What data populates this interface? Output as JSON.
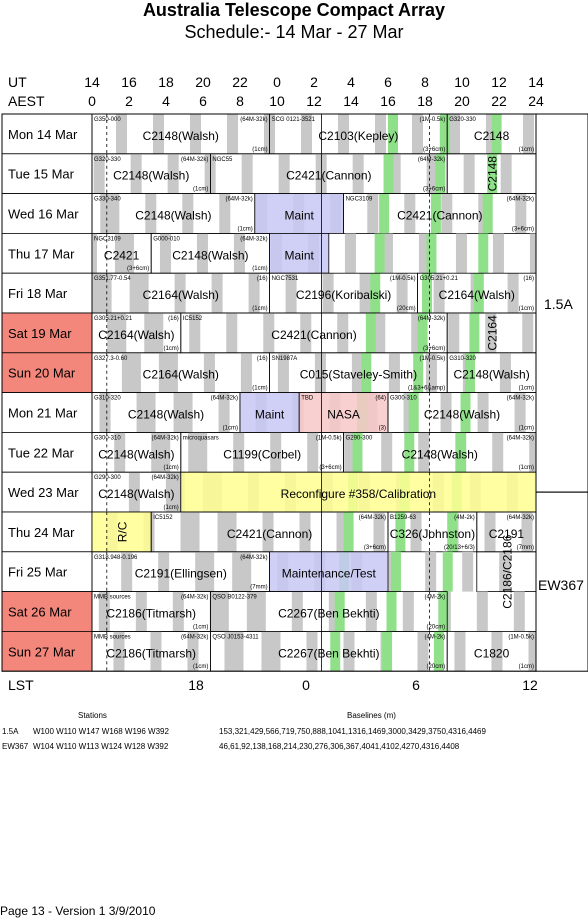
{
  "title": "Australia Telescope Compact Array",
  "subtitle": "Schedule:- 14 Mar - 27 Mar",
  "labels": {
    "ut": "UT",
    "aest": "AEST",
    "lst": "LST"
  },
  "ut_ticks": [
    "14",
    "16",
    "18",
    "20",
    "22",
    "0",
    "2",
    "4",
    "6",
    "8",
    "10",
    "12",
    "14"
  ],
  "aest_ticks": [
    "0",
    "2",
    "4",
    "6",
    "8",
    "10",
    "12",
    "14",
    "16",
    "18",
    "20",
    "22",
    "24"
  ],
  "lst_ticks": [
    "18",
    "0",
    "6",
    "12"
  ],
  "colors": {
    "weekend": "#f4877b",
    "grey": "#c8c8c8",
    "green": "#90e08a",
    "blue": "#c8c8f4",
    "yellow": "#ffff90",
    "pink": "#f8c8c8"
  },
  "days": [
    {
      "label": "Mon  14 Mar",
      "weekend": false,
      "blocks": [
        {
          "start": 0,
          "end": 12,
          "text": "C2148(Walsh)",
          "src": "G350-000",
          "cfg": "(64M-32k)",
          "note": "(1cm)"
        },
        {
          "start": 12,
          "end": 24,
          "text": "C2103(Kepley)",
          "src": "SCG 0121-3521",
          "cfg": "(1M-0.5k)",
          "note": "(3+6cm)"
        },
        {
          "start": 24,
          "end": 30,
          "text": "C2148",
          "src": "G320-330",
          "cfg": "",
          "note": "(1cm)"
        }
      ]
    },
    {
      "label": "Tue  15 Mar",
      "weekend": false,
      "blocks": [
        {
          "start": 0,
          "end": 8,
          "text": "C2148(Walsh)",
          "src": "G320-330",
          "cfg": "(64M-32k)",
          "note": "(1cm)"
        },
        {
          "start": 8,
          "end": 24,
          "text": "C2421(Cannon)",
          "src": "NGC55",
          "cfg": "(64M-32k)",
          "note": "(3+6cm)"
        },
        {
          "start": 24,
          "end": 30,
          "text": "C2148",
          "src": "",
          "cfg": "",
          "note": "",
          "vertical": true
        }
      ]
    },
    {
      "label": "Wed  16 Mar",
      "weekend": false,
      "blocks": [
        {
          "start": 0,
          "end": 11,
          "text": "C2148(Walsh)",
          "src": "G330-340",
          "cfg": "(64M-32k)",
          "note": "(1cm)"
        },
        {
          "start": 11,
          "end": 17,
          "text": "Maint",
          "src": "",
          "cfg": "",
          "note": ""
        },
        {
          "start": 17,
          "end": 30,
          "text": "C2421(Cannon)",
          "src": "NGC3109",
          "cfg": "(64M-32k)",
          "note": "(3+6cm)"
        }
      ]
    },
    {
      "label": "Thu  17 Mar",
      "weekend": false,
      "blocks": [
        {
          "start": 0,
          "end": 4,
          "text": "C2421",
          "src": "NGC3109",
          "cfg": "",
          "note": "(3+6cm)"
        },
        {
          "start": 4,
          "end": 12,
          "text": "C2148(Walsh)",
          "src": "G000-010",
          "cfg": "(64M-32k)",
          "note": "(1cm)"
        },
        {
          "start": 12,
          "end": 16,
          "text": "Maint",
          "src": "",
          "cfg": "",
          "note": ""
        }
      ]
    },
    {
      "label": "Fri  18 Mar",
      "weekend": false,
      "blocks": [
        {
          "start": 0,
          "end": 12,
          "text": "C2164(Walsh)",
          "src": "G351.77-0.54",
          "cfg": "(16)",
          "note": "(1cm)"
        },
        {
          "start": 12,
          "end": 22,
          "text": "C2196(Koribalski)",
          "src": "NGC7531",
          "cfg": "(1M-0.5k)",
          "note": "(20cm)"
        },
        {
          "start": 22,
          "end": 30,
          "text": "C2164(Walsh)",
          "src": "G305.21+0.21",
          "cfg": "(16)",
          "note": "(1cm)"
        }
      ]
    },
    {
      "label": "Sat  19 Mar",
      "weekend": true,
      "blocks": [
        {
          "start": 0,
          "end": 6,
          "text": "C2164(Walsh)",
          "src": "G305.21+0.21",
          "cfg": "(16)",
          "note": "(1cm)"
        },
        {
          "start": 6,
          "end": 24,
          "text": "C2421(Cannon)",
          "src": "IC5152",
          "cfg": "(64M-32k)",
          "note": "(3+6cm)"
        },
        {
          "start": 24,
          "end": 30,
          "text": "C2164",
          "src": "",
          "cfg": "",
          "note": "",
          "vertical": true
        }
      ]
    },
    {
      "label": "Sun  20 Mar",
      "weekend": true,
      "blocks": [
        {
          "start": 0,
          "end": 12,
          "text": "C2164(Walsh)",
          "src": "G327.3-0.60",
          "cfg": "(16)",
          "note": "(1cm)"
        },
        {
          "start": 12,
          "end": 24,
          "text": "C015(Staveley-Smith)",
          "src": "SN1987A",
          "cfg": "(1M-0.5k)",
          "note": "(1&3+6&amp)"
        },
        {
          "start": 24,
          "end": 30,
          "text": "C2148(Walsh)",
          "src": "G310-320",
          "cfg": "",
          "note": "(1cm)"
        }
      ]
    },
    {
      "label": "Mon  21 Mar",
      "weekend": false,
      "blocks": [
        {
          "start": 0,
          "end": 10,
          "text": "C2148(Walsh)",
          "src": "G310-320",
          "cfg": "(64M-32k)",
          "note": "(1cm)"
        },
        {
          "start": 10,
          "end": 14,
          "text": "Maint",
          "src": "",
          "cfg": "",
          "note": ""
        },
        {
          "start": 14,
          "end": 20,
          "text": "NASA",
          "src": "TBD",
          "cfg": "(64)",
          "note": "(3)"
        },
        {
          "start": 20,
          "end": 30,
          "text": "C2148(Walsh)",
          "src": "G300-310",
          "cfg": "(64M-32k)",
          "note": "(1cm)"
        }
      ]
    },
    {
      "label": "Tue  22 Mar",
      "weekend": false,
      "blocks": [
        {
          "start": 0,
          "end": 6,
          "text": "C2148(Walsh)",
          "src": "G300-310",
          "cfg": "(64M-32k)",
          "note": "(1cm)"
        },
        {
          "start": 6,
          "end": 17,
          "text": "C1199(Corbel)",
          "src": "microquasars",
          "cfg": "(1M-0.5k)",
          "note": "(3+6cm)"
        },
        {
          "start": 17,
          "end": 30,
          "text": "C2148(Walsh)",
          "src": "G290-300",
          "cfg": "(64M-32k)",
          "note": "(1cm)"
        }
      ]
    },
    {
      "label": "Wed  23 Mar",
      "weekend": false,
      "blocks": [
        {
          "start": 0,
          "end": 6,
          "text": "C2148(Walsh)",
          "src": "G290-300",
          "cfg": "(64M-32k)",
          "note": "(1cm)"
        },
        {
          "start": 6,
          "end": 30,
          "text": "Reconfigure #358/Calibration",
          "src": "",
          "cfg": "",
          "note": ""
        }
      ]
    },
    {
      "label": "Thu  24 Mar",
      "weekend": false,
      "blocks": [
        {
          "start": 0,
          "end": 4,
          "text": "R/C",
          "src": "",
          "cfg": "",
          "note": "",
          "vertical": true
        },
        {
          "start": 4,
          "end": 20,
          "text": "C2421(Cannon)",
          "src": "IC5152",
          "cfg": "(64M-32k)",
          "note": "(3+6cm)"
        },
        {
          "start": 20,
          "end": 26,
          "text": "C326(Johnston)",
          "src": "B1259-63",
          "cfg": "(4M-2k)",
          "note": "(20/13+6/3)"
        },
        {
          "start": 26,
          "end": 30,
          "text": "C2191",
          "src": "",
          "cfg": "(64M-32k)",
          "note": "(7mm)"
        }
      ]
    },
    {
      "label": "Fri  25 Mar",
      "weekend": false,
      "blocks": [
        {
          "start": 0,
          "end": 12,
          "text": "C2191(Ellingsen)",
          "src": "G318.948-0.196",
          "cfg": "(64M-32k)",
          "note": "(7mm)"
        },
        {
          "start": 12,
          "end": 20,
          "text": "Maintenance/Test",
          "src": "",
          "cfg": "",
          "note": ""
        },
        {
          "start": 26,
          "end": 30,
          "text": "C2186/C2186",
          "src": "",
          "cfg": "",
          "note": "",
          "vertical": true
        }
      ]
    },
    {
      "label": "Sat  26 Mar",
      "weekend": true,
      "blocks": [
        {
          "start": 0,
          "end": 8,
          "text": "C2186(Titmarsh)",
          "src": "MMB sources",
          "cfg": "(64M-32k)",
          "note": "(1cm)"
        },
        {
          "start": 8,
          "end": 24,
          "text": "C2267(Ben Bekhti)",
          "src": "QSO B0122-379",
          "cfg": "(4M-2k)",
          "note": "(20cm)"
        }
      ]
    },
    {
      "label": "Sun  27 Mar",
      "weekend": true,
      "blocks": [
        {
          "start": 0,
          "end": 8,
          "text": "C2186(Titmarsh)",
          "src": "MMB sources",
          "cfg": "(64M-32k)",
          "note": "(1cm)"
        },
        {
          "start": 8,
          "end": 24,
          "text": "C2267(Ben Bekhti)",
          "src": "QSO J0153-4311",
          "cfg": "(4M-2k)",
          "note": "(20cm)"
        },
        {
          "start": 24,
          "end": 30,
          "text": "C1820",
          "src": "",
          "cfg": "(1M-0.5k)",
          "note": "(1cm)"
        }
      ]
    }
  ],
  "configs": [
    {
      "name": "1.5A"
    },
    {
      "name": "EW367"
    }
  ],
  "stations": {
    "header": "Stations",
    "rows": [
      {
        "cfg": "1.5A",
        "list": "W100 W110 W147 W168 W196 W392"
      },
      {
        "cfg": "EW367",
        "list": "W104 W110 W113 W124 W128 W392"
      }
    ]
  },
  "baselines": {
    "header": "Baselines (m)",
    "rows": [
      "153,321,429,566,719,750,888,1041,1316,1469,3000,3429,3750,4316,4469",
      "46,61,92,138,168,214,230,276,306,367,4041,4102,4270,4316,4408"
    ]
  },
  "page_info": "Page 13 - Version 1  3/9/2010"
}
